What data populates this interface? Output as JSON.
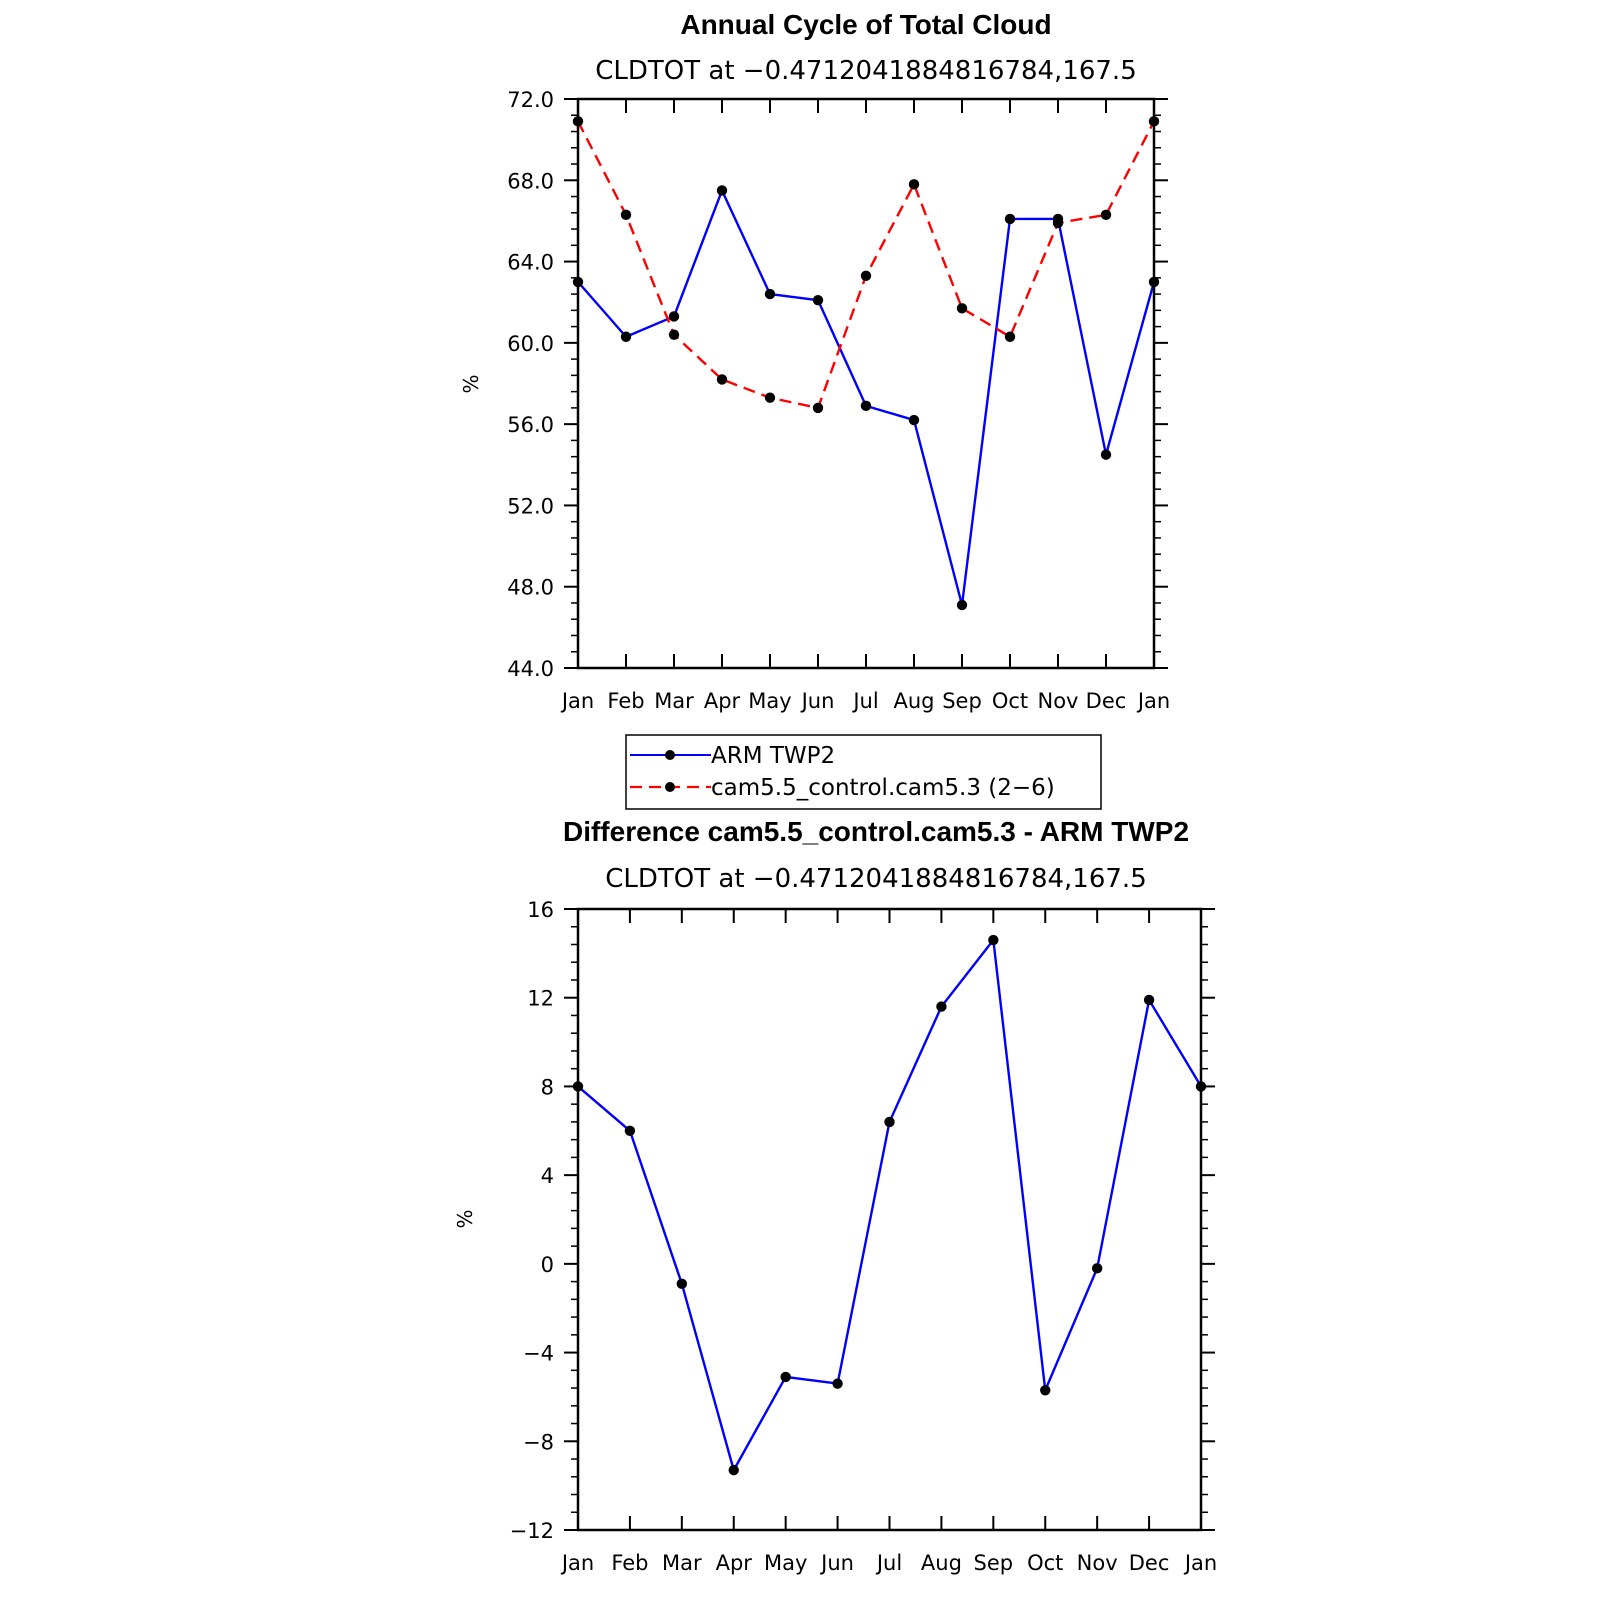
{
  "chart_data": [
    {
      "type": "line",
      "title": "Annual Cycle of Total Cloud",
      "subtitle": "CLDTOT at −0.4712041884816784,167.5",
      "ylabel": "%",
      "ylim": [
        44,
        72
      ],
      "yticks": [
        "72.0",
        "68.0",
        "64.0",
        "60.0",
        "56.0",
        "52.0",
        "48.0",
        "44.0"
      ],
      "categories": [
        "Jan",
        "Feb",
        "Mar",
        "Apr",
        "May",
        "Jun",
        "Jul",
        "Aug",
        "Sep",
        "Oct",
        "Nov",
        "Dec",
        "Jan"
      ],
      "series": [
        {
          "name": "ARM TWP2",
          "color": "#0000ff",
          "dash": "solid",
          "values": [
            63.0,
            60.3,
            61.3,
            67.5,
            62.4,
            62.1,
            56.9,
            56.2,
            47.1,
            66.1,
            66.1,
            54.5,
            63.0
          ]
        },
        {
          "name": "cam5.5_control.cam5.3 (2−6)",
          "color": "#ff0000",
          "dash": "dashed",
          "values": [
            70.9,
            66.3,
            60.4,
            58.2,
            57.3,
            56.8,
            63.3,
            67.8,
            61.7,
            60.3,
            65.9,
            66.3,
            70.9
          ]
        }
      ],
      "legend": "below"
    },
    {
      "type": "line",
      "title": "Difference cam5.5_control.cam5.3 - ARM TWP2",
      "subtitle": "CLDTOT at −0.4712041884816784,167.5",
      "ylabel": "%",
      "ylim": [
        -12,
        16
      ],
      "yticks": [
        "16",
        "12",
        "8",
        "4",
        "0",
        "−4",
        "−8",
        "−12"
      ],
      "categories": [
        "Jan",
        "Feb",
        "Mar",
        "Apr",
        "May",
        "Jun",
        "Jul",
        "Aug",
        "Sep",
        "Oct",
        "Nov",
        "Dec",
        "Jan"
      ],
      "series": [
        {
          "color": "#0000ff",
          "dash": "solid",
          "values": [
            8.0,
            6.0,
            -0.9,
            -9.3,
            -5.1,
            -5.4,
            6.4,
            11.6,
            14.6,
            -5.7,
            -0.2,
            11.9,
            8.0
          ]
        }
      ]
    }
  ]
}
